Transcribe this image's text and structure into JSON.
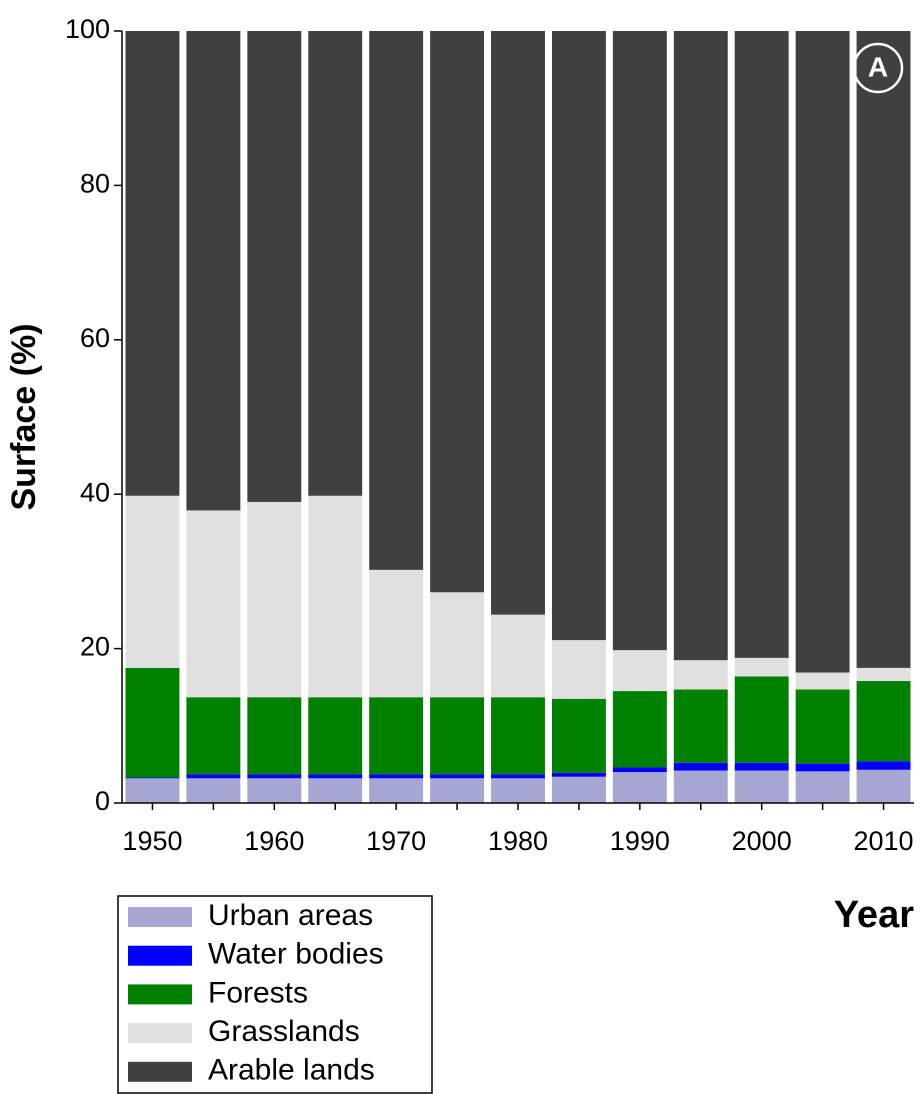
{
  "chart_data": {
    "type": "stacked_bar",
    "y_label": "Surface (%)",
    "x_label": "Year",
    "annotation": "A",
    "categories": [
      "1950",
      null,
      "1960",
      null,
      "1970",
      null,
      "1980",
      null,
      "1990",
      null,
      "2000",
      null,
      "2010"
    ],
    "series": [
      {
        "name": "Urban areas",
        "color": "#a6a6d2",
        "values": [
          3.2,
          3.2,
          3.2,
          3.2,
          3.2,
          3.2,
          3.2,
          3.4,
          4.0,
          4.2,
          4.2,
          4.1,
          4.3
        ]
      },
      {
        "name": "Water bodies",
        "color": "#0000ff",
        "values": [
          0.1,
          0.5,
          0.5,
          0.5,
          0.5,
          0.5,
          0.5,
          0.5,
          0.6,
          1.0,
          1.0,
          1.0,
          1.1
        ]
      },
      {
        "name": "Forests",
        "color": "#008000",
        "values": [
          14.2,
          10.0,
          10.0,
          10.0,
          10.0,
          10.0,
          10.0,
          9.6,
          9.9,
          9.5,
          11.2,
          9.6,
          10.4
        ]
      },
      {
        "name": "Grasslands",
        "color": "#e0e0e0",
        "values": [
          22.3,
          24.2,
          25.3,
          26.1,
          16.5,
          13.6,
          10.7,
          7.6,
          5.3,
          3.8,
          2.4,
          2.2,
          1.7
        ]
      },
      {
        "name": "Arable lands",
        "color": "#404040",
        "values": [
          60.2,
          62.1,
          61.0,
          60.2,
          69.8,
          72.7,
          75.6,
          78.9,
          80.2,
          81.5,
          81.2,
          83.1,
          82.5
        ]
      }
    ],
    "ylim": [
      0,
      100
    ],
    "yticks": [
      0,
      20,
      40,
      60,
      80,
      100
    ]
  }
}
